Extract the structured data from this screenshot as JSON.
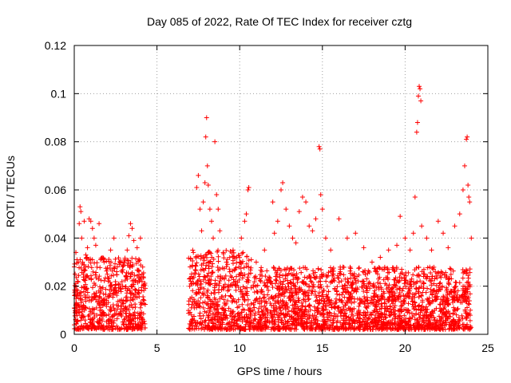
{
  "chart_data": {
    "type": "scatter",
    "title": "Day 085 of 2022, Rate Of TEC Index for receiver cztg",
    "xlabel": "GPS time / hours",
    "ylabel": "ROTI / TECUs",
    "xlim": [
      0,
      25
    ],
    "ylim": [
      0,
      0.12
    ],
    "xticks": [
      0,
      5,
      10,
      15,
      20,
      25
    ],
    "xtick_labels": [
      "0",
      "5",
      "10",
      "15",
      "20",
      "25"
    ],
    "yticks": [
      0,
      0.02,
      0.04,
      0.06,
      0.08,
      0.1,
      0.12
    ],
    "ytick_labels": [
      "0",
      "0.02",
      "0.04",
      "0.06",
      "0.08",
      "0.1",
      "0.12"
    ],
    "grid": true,
    "marker": "+",
    "colors": {
      "points": "#ff0000",
      "grid": "#a0a0a0",
      "axes": "#000000"
    },
    "series": [
      {
        "name": "ROTI",
        "points": [
          [
            0.0,
            0.028
          ],
          [
            0.1,
            0.034
          ],
          [
            0.2,
            0.022
          ],
          [
            0.25,
            0.03
          ],
          [
            0.3,
            0.046
          ],
          [
            0.35,
            0.053
          ],
          [
            0.4,
            0.051
          ],
          [
            0.45,
            0.04
          ],
          [
            0.5,
            0.03
          ],
          [
            0.55,
            0.025
          ],
          [
            0.6,
            0.047
          ],
          [
            0.7,
            0.033
          ],
          [
            0.8,
            0.036
          ],
          [
            0.9,
            0.048
          ],
          [
            1.0,
            0.047
          ],
          [
            1.1,
            0.044
          ],
          [
            1.2,
            0.04
          ],
          [
            1.3,
            0.037
          ],
          [
            1.5,
            0.046
          ],
          [
            1.6,
            0.031
          ],
          [
            1.8,
            0.03
          ],
          [
            2.0,
            0.025
          ],
          [
            2.2,
            0.035
          ],
          [
            2.4,
            0.04
          ],
          [
            2.6,
            0.028
          ],
          [
            2.8,
            0.03
          ],
          [
            3.0,
            0.03
          ],
          [
            3.2,
            0.035
          ],
          [
            3.3,
            0.041
          ],
          [
            3.4,
            0.046
          ],
          [
            3.5,
            0.044
          ],
          [
            3.6,
            0.039
          ],
          [
            3.8,
            0.036
          ],
          [
            4.0,
            0.04
          ],
          [
            4.1,
            0.025
          ],
          [
            4.2,
            0.02
          ],
          [
            7.0,
            0.028
          ],
          [
            7.2,
            0.034
          ],
          [
            7.4,
            0.061
          ],
          [
            7.5,
            0.066
          ],
          [
            7.6,
            0.052
          ],
          [
            7.7,
            0.043
          ],
          [
            7.8,
            0.055
          ],
          [
            7.9,
            0.063
          ],
          [
            7.95,
            0.082
          ],
          [
            8.0,
            0.09
          ],
          [
            8.05,
            0.07
          ],
          [
            8.1,
            0.062
          ],
          [
            8.2,
            0.052
          ],
          [
            8.3,
            0.047
          ],
          [
            8.4,
            0.04
          ],
          [
            8.5,
            0.08
          ],
          [
            8.6,
            0.058
          ],
          [
            8.7,
            0.052
          ],
          [
            8.8,
            0.043
          ],
          [
            9.0,
            0.034
          ],
          [
            9.2,
            0.03
          ],
          [
            9.4,
            0.026
          ],
          [
            9.6,
            0.035
          ],
          [
            9.8,
            0.024
          ],
          [
            10.0,
            0.03
          ],
          [
            10.1,
            0.04
          ],
          [
            10.2,
            0.034
          ],
          [
            10.3,
            0.047
          ],
          [
            10.4,
            0.05
          ],
          [
            10.5,
            0.06
          ],
          [
            10.55,
            0.061
          ],
          [
            11.0,
            0.03
          ],
          [
            11.5,
            0.035
          ],
          [
            12.0,
            0.055
          ],
          [
            12.1,
            0.042
          ],
          [
            12.3,
            0.047
          ],
          [
            12.5,
            0.06
          ],
          [
            12.6,
            0.063
          ],
          [
            12.8,
            0.052
          ],
          [
            13.0,
            0.045
          ],
          [
            13.2,
            0.04
          ],
          [
            13.4,
            0.038
          ],
          [
            13.6,
            0.051
          ],
          [
            13.8,
            0.057
          ],
          [
            14.0,
            0.055
          ],
          [
            14.2,
            0.045
          ],
          [
            14.4,
            0.043
          ],
          [
            14.6,
            0.048
          ],
          [
            14.8,
            0.078
          ],
          [
            14.85,
            0.077
          ],
          [
            14.9,
            0.058
          ],
          [
            15.0,
            0.052
          ],
          [
            15.2,
            0.04
          ],
          [
            15.5,
            0.035
          ],
          [
            16.0,
            0.048
          ],
          [
            16.5,
            0.04
          ],
          [
            17.0,
            0.042
          ],
          [
            17.5,
            0.036
          ],
          [
            18.0,
            0.03
          ],
          [
            18.5,
            0.032
          ],
          [
            19.0,
            0.035
          ],
          [
            19.5,
            0.037
          ],
          [
            19.7,
            0.049
          ],
          [
            20.0,
            0.04
          ],
          [
            20.3,
            0.035
          ],
          [
            20.5,
            0.042
          ],
          [
            20.6,
            0.057
          ],
          [
            20.7,
            0.084
          ],
          [
            20.75,
            0.088
          ],
          [
            20.8,
            0.099
          ],
          [
            20.85,
            0.103
          ],
          [
            20.9,
            0.102
          ],
          [
            20.95,
            0.097
          ],
          [
            21.0,
            0.045
          ],
          [
            21.3,
            0.04
          ],
          [
            21.6,
            0.035
          ],
          [
            22.0,
            0.047
          ],
          [
            22.3,
            0.042
          ],
          [
            22.6,
            0.036
          ],
          [
            23.0,
            0.045
          ],
          [
            23.3,
            0.05
          ],
          [
            23.5,
            0.06
          ],
          [
            23.6,
            0.07
          ],
          [
            23.7,
            0.081
          ],
          [
            23.75,
            0.082
          ],
          [
            23.8,
            0.062
          ],
          [
            23.85,
            0.057
          ],
          [
            23.9,
            0.055
          ],
          [
            24.0,
            0.04
          ]
        ],
        "dense_bands": [
          {
            "x_range": [
              0.0,
              4.3
            ],
            "y_range": [
              0.002,
              0.032
            ]
          },
          {
            "x_range": [
              6.9,
              10.7
            ],
            "y_range": [
              0.002,
              0.035
            ]
          },
          {
            "x_range": [
              10.8,
              24.0
            ],
            "y_range": [
              0.002,
              0.028
            ]
          }
        ]
      }
    ]
  }
}
